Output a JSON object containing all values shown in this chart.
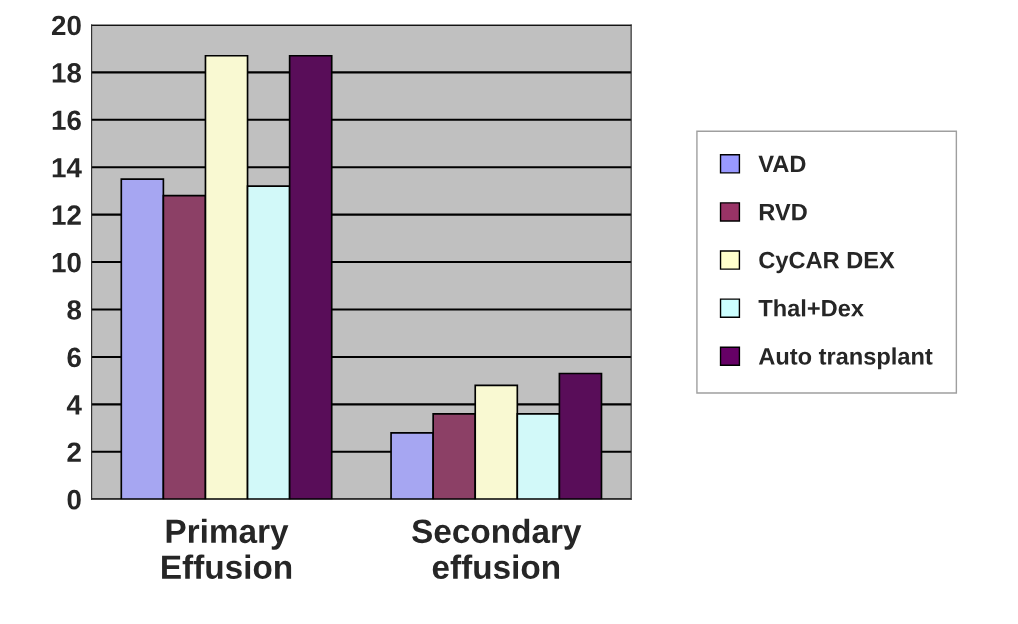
{
  "chart_data": {
    "type": "bar",
    "categories": [
      "Primary\nEffusion",
      "Secondary\neffusion"
    ],
    "series": [
      {
        "name": "VAD",
        "color": "#9999ff",
        "values": [
          13.5,
          2.8
        ]
      },
      {
        "name": "RVD",
        "color": "#993366",
        "values": [
          12.8,
          3.6
        ]
      },
      {
        "name": "CyCAR DEX",
        "color": "#ffffcc",
        "values": [
          18.7,
          4.8
        ]
      },
      {
        "name": "Thal+Dex",
        "color": "#ccffff",
        "values": [
          13.2,
          3.6
        ]
      },
      {
        "name": "Auto transplant",
        "color": "#660066",
        "values": [
          18.7,
          5.3
        ]
      }
    ],
    "ylim": [
      0,
      20
    ],
    "yticks": [
      0,
      2,
      4,
      6,
      8,
      10,
      12,
      14,
      16,
      18,
      20
    ],
    "grid": "y",
    "legend": "right"
  }
}
